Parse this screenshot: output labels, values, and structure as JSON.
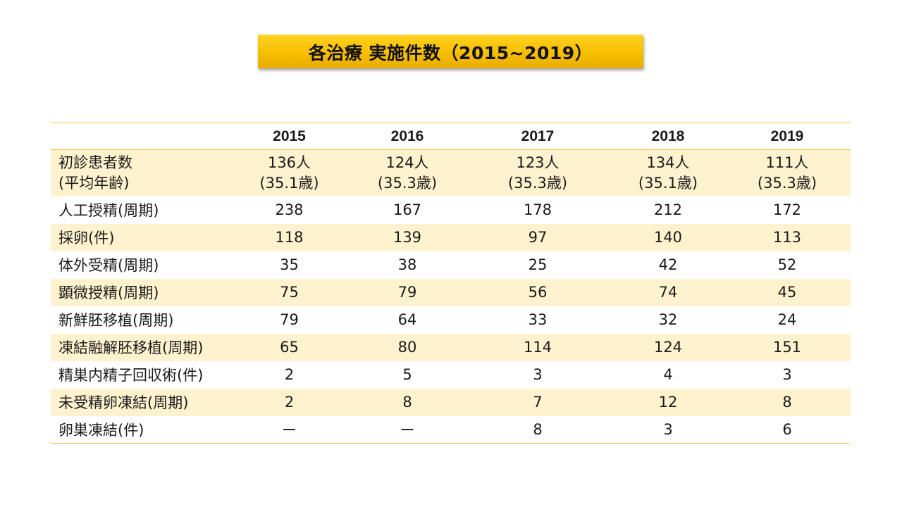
{
  "title": "各治療 実施件数（2015~2019）",
  "colors": {
    "title_fill": "#f6be00",
    "row_shade": "#fef2cf",
    "rule": "#f5c242"
  },
  "table": {
    "columns": [
      "",
      "2015",
      "2016",
      "2017",
      "2018",
      "2019"
    ],
    "rows": [
      {
        "label": [
          "初診患者数",
          "(平均年齢)"
        ],
        "values": [
          [
            "136人",
            "(35.1歳)"
          ],
          [
            "124人",
            "(35.3歳)"
          ],
          [
            "123人",
            "(35.3歳)"
          ],
          [
            "134人",
            "(35.1歳)"
          ],
          [
            "111人",
            "(35.3歳)"
          ]
        ]
      },
      {
        "label": "人工授精(周期)",
        "values": [
          "238",
          "167",
          "178",
          "212",
          "172"
        ]
      },
      {
        "label": "採卵(件)",
        "values": [
          "118",
          "139",
          "97",
          "140",
          "113"
        ]
      },
      {
        "label": "体外受精(周期)",
        "values": [
          "35",
          "38",
          "25",
          "42",
          "52"
        ]
      },
      {
        "label": "顕微授精(周期)",
        "values": [
          "75",
          "79",
          "56",
          "74",
          "45"
        ]
      },
      {
        "label": "新鮮胚移植(周期)",
        "values": [
          "79",
          "64",
          "33",
          "32",
          "24"
        ]
      },
      {
        "label": "凍結融解胚移植(周期)",
        "values": [
          "65",
          "80",
          "114",
          "124",
          "151"
        ]
      },
      {
        "label": "精巣内精子回収術(件)",
        "values": [
          "2",
          "5",
          "3",
          "4",
          "3"
        ]
      },
      {
        "label": "未受精卵凍結(周期)",
        "values": [
          "2",
          "8",
          "7",
          "12",
          "8"
        ]
      },
      {
        "label": "卵巣凍結(件)",
        "values": [
          "ー",
          "ー",
          "8",
          "3",
          "6"
        ]
      }
    ]
  }
}
